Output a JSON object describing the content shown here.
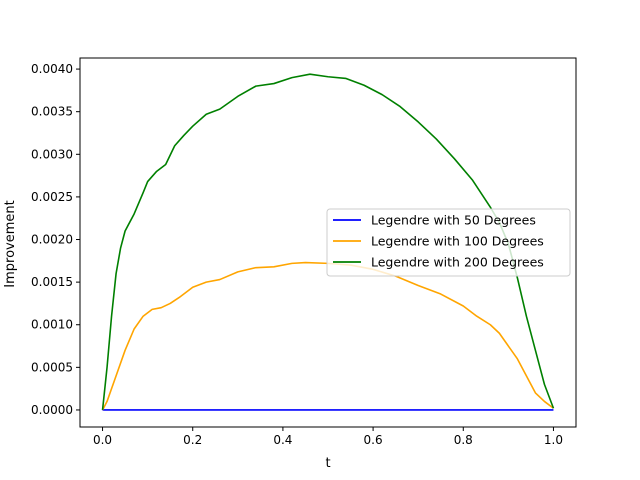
{
  "chart_data": {
    "type": "line",
    "title": "",
    "xlabel": "t",
    "ylabel": "Improvement",
    "xlim": [
      -0.05,
      1.05
    ],
    "ylim": [
      -0.0002,
      0.00413
    ],
    "xticks": [
      0.0,
      0.2,
      0.4,
      0.6,
      0.8,
      1.0
    ],
    "xtick_labels": [
      "0.0",
      "0.2",
      "0.4",
      "0.6",
      "0.8",
      "1.0"
    ],
    "yticks": [
      0.0,
      0.0005,
      0.001,
      0.0015,
      0.002,
      0.0025,
      0.003,
      0.0035,
      0.004
    ],
    "ytick_labels": [
      "0.0000",
      "0.0005",
      "0.0010",
      "0.0015",
      "0.0020",
      "0.0025",
      "0.0030",
      "0.0035",
      "0.0040"
    ],
    "grid": false,
    "legend_position": "center-right",
    "series": [
      {
        "name": "Legendre with 50 Degrees",
        "color": "#0000ff",
        "x": [
          0.0,
          1.0
        ],
        "y": [
          0.0,
          0.0
        ]
      },
      {
        "name": "Legendre with 100 Degrees",
        "color": "#ffa500",
        "x": [
          0.0,
          0.01,
          0.02,
          0.03,
          0.05,
          0.07,
          0.09,
          0.11,
          0.13,
          0.15,
          0.17,
          0.2,
          0.23,
          0.26,
          0.3,
          0.34,
          0.38,
          0.42,
          0.45,
          0.5,
          0.55,
          0.6,
          0.65,
          0.7,
          0.75,
          0.8,
          0.83,
          0.86,
          0.88,
          0.9,
          0.92,
          0.94,
          0.96,
          0.98,
          1.0
        ],
        "y": [
          0.0,
          0.0001,
          0.00025,
          0.0004,
          0.0007,
          0.00095,
          0.0011,
          0.00118,
          0.0012,
          0.00125,
          0.00132,
          0.00144,
          0.0015,
          0.00153,
          0.00162,
          0.00167,
          0.00168,
          0.00172,
          0.00173,
          0.00172,
          0.0017,
          0.00165,
          0.00157,
          0.00146,
          0.00136,
          0.00122,
          0.0011,
          0.001,
          0.0009,
          0.00075,
          0.0006,
          0.0004,
          0.0002,
          0.0001,
          2e-05
        ]
      },
      {
        "name": "Legendre with 200 Degrees",
        "color": "#008000",
        "x": [
          0.0,
          0.01,
          0.02,
          0.03,
          0.04,
          0.05,
          0.07,
          0.09,
          0.1,
          0.12,
          0.14,
          0.16,
          0.18,
          0.2,
          0.23,
          0.26,
          0.3,
          0.34,
          0.38,
          0.42,
          0.46,
          0.5,
          0.54,
          0.58,
          0.62,
          0.66,
          0.7,
          0.74,
          0.78,
          0.82,
          0.86,
          0.88,
          0.9,
          0.92,
          0.94,
          0.96,
          0.98,
          1.0
        ],
        "y": [
          0.0,
          0.0005,
          0.0011,
          0.0016,
          0.0019,
          0.0021,
          0.0023,
          0.00255,
          0.00268,
          0.0028,
          0.00288,
          0.0031,
          0.00322,
          0.00333,
          0.00347,
          0.00353,
          0.00368,
          0.0038,
          0.00383,
          0.0039,
          0.00394,
          0.00391,
          0.00389,
          0.00381,
          0.0037,
          0.00356,
          0.00338,
          0.00318,
          0.00295,
          0.0027,
          0.00238,
          0.0022,
          0.00195,
          0.00155,
          0.0011,
          0.0007,
          0.0003,
          2e-05
        ]
      }
    ]
  }
}
